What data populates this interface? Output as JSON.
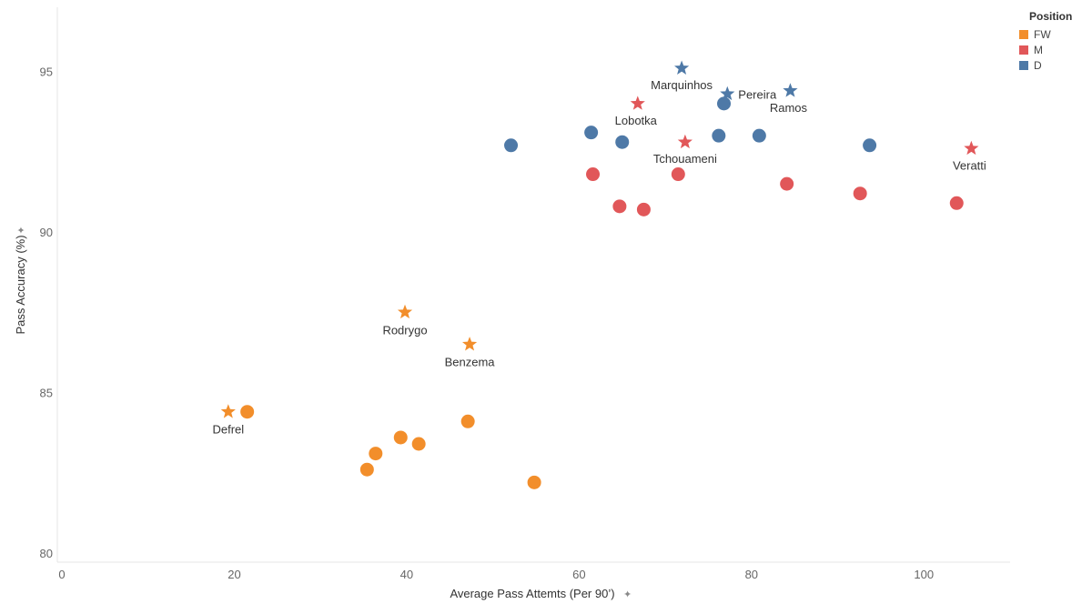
{
  "chart_data": {
    "type": "scatter",
    "xlabel": "Average Pass Attemts (Per 90’)",
    "ylabel": "Pass Accuracy (%)",
    "xlim": [
      0,
      110
    ],
    "ylim": [
      80,
      97
    ],
    "x_ticks": [
      0,
      20,
      40,
      60,
      80,
      100
    ],
    "y_ticks": [
      80,
      85,
      90,
      95
    ],
    "grid": false,
    "legend": {
      "title": "Position",
      "placement": "top-right",
      "items": [
        {
          "name": "FW",
          "color": "#F28E2B"
        },
        {
          "name": "M",
          "color": "#E15759"
        },
        {
          "name": "D",
          "color": "#4E79A7"
        }
      ]
    },
    "series": [
      {
        "name": "FW",
        "color": "#F28E2B",
        "points": [
          {
            "x": 21.5,
            "y": 84.4
          },
          {
            "x": 36.4,
            "y": 83.1
          },
          {
            "x": 35.4,
            "y": 82.6
          },
          {
            "x": 39.3,
            "y": 83.6
          },
          {
            "x": 41.4,
            "y": 83.4
          },
          {
            "x": 47.1,
            "y": 84.1
          },
          {
            "x": 54.8,
            "y": 82.2
          }
        ],
        "highlighted": [
          {
            "x": 19.3,
            "y": 84.4,
            "label": "Defrel"
          },
          {
            "x": 39.8,
            "y": 87.5,
            "label": "Rodrygo"
          },
          {
            "x": 47.3,
            "y": 86.5,
            "label": "Benzema"
          }
        ]
      },
      {
        "name": "M",
        "color": "#E15759",
        "points": [
          {
            "x": 61.6,
            "y": 91.8
          },
          {
            "x": 64.7,
            "y": 90.8
          },
          {
            "x": 67.5,
            "y": 90.7
          },
          {
            "x": 71.5,
            "y": 91.8
          },
          {
            "x": 84.1,
            "y": 91.5
          },
          {
            "x": 92.6,
            "y": 91.2
          },
          {
            "x": 103.8,
            "y": 90.9
          }
        ],
        "highlighted": [
          {
            "x": 66.8,
            "y": 94.0,
            "label": "Lobotka"
          },
          {
            "x": 72.3,
            "y": 92.8,
            "label": "Tchouameni"
          },
          {
            "x": 105.5,
            "y": 92.6,
            "label": "Veratti"
          }
        ]
      },
      {
        "name": "D",
        "color": "#4E79A7",
        "points": [
          {
            "x": 52.1,
            "y": 92.7
          },
          {
            "x": 61.4,
            "y": 93.1
          },
          {
            "x": 65.0,
            "y": 92.8
          },
          {
            "x": 76.8,
            "y": 94.0
          },
          {
            "x": 76.2,
            "y": 93.0
          },
          {
            "x": 80.9,
            "y": 93.0
          },
          {
            "x": 93.7,
            "y": 92.7
          }
        ],
        "highlighted": [
          {
            "x": 71.9,
            "y": 95.1,
            "label": "Marquinhos"
          },
          {
            "x": 77.2,
            "y": 94.3,
            "label": "Pereira"
          },
          {
            "x": 84.5,
            "y": 94.4,
            "label": "Ramos"
          }
        ]
      }
    ]
  }
}
